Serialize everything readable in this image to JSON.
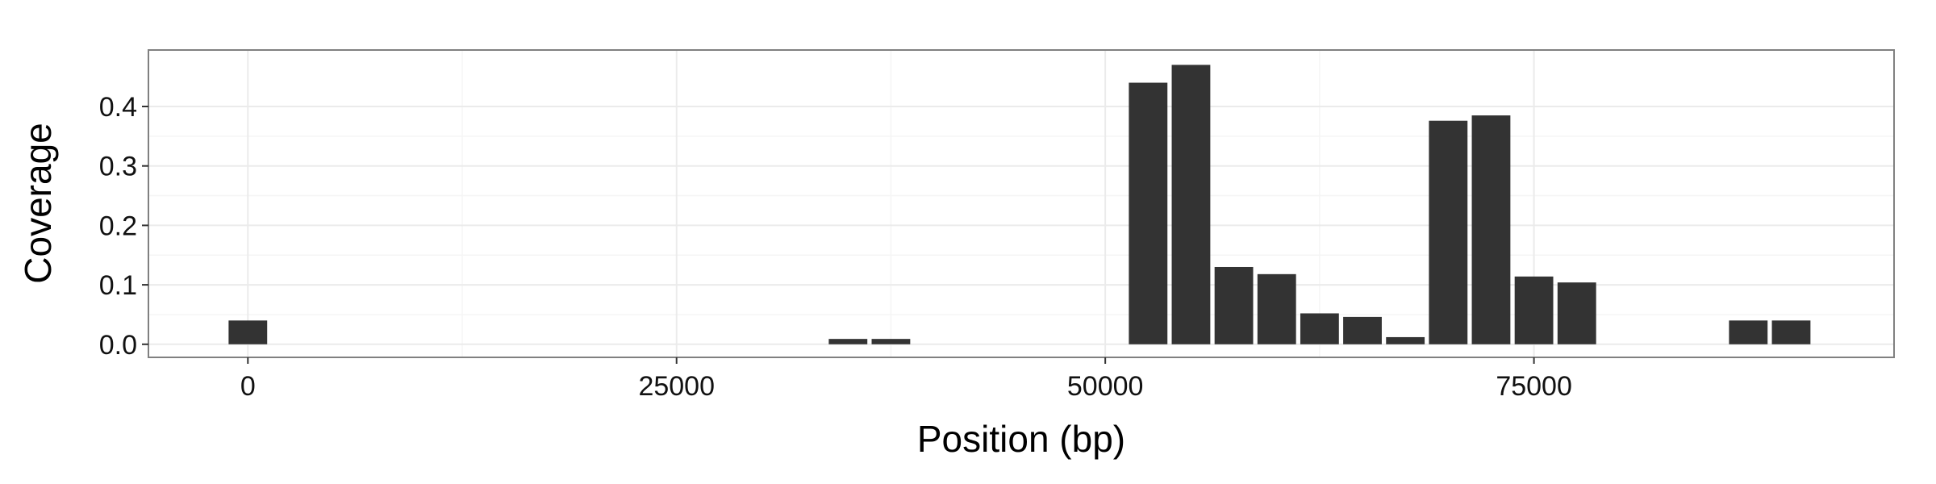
{
  "chart_data": {
    "type": "bar",
    "title": "",
    "xlabel": "Position (bp)",
    "ylabel": "Coverage",
    "xlim": [
      -5800,
      96000
    ],
    "ylim": [
      -0.022,
      0.495
    ],
    "bin_width": 2500,
    "x_ticks": [
      {
        "value": 0,
        "label": "0"
      },
      {
        "value": 25000,
        "label": "25000"
      },
      {
        "value": 50000,
        "label": "50000"
      },
      {
        "value": 75000,
        "label": "75000"
      }
    ],
    "y_ticks": [
      {
        "value": 0.0,
        "label": "0.0"
      },
      {
        "value": 0.1,
        "label": "0.1"
      },
      {
        "value": 0.2,
        "label": "0.2"
      },
      {
        "value": 0.3,
        "label": "0.3"
      },
      {
        "value": 0.4,
        "label": "0.4"
      }
    ],
    "x": [
      0,
      35000,
      37500,
      52500,
      55000,
      57500,
      60000,
      62500,
      65000,
      67500,
      70000,
      72500,
      75000,
      77500,
      87500,
      90000
    ],
    "values": [
      0.04,
      0.009,
      0.009,
      0.44,
      0.47,
      0.13,
      0.118,
      0.052,
      0.046,
      0.012,
      0.376,
      0.385,
      0.114,
      0.104,
      0.04,
      0.04
    ],
    "colors": {
      "bar": "#333333",
      "panel_border": "#808080",
      "grid_major": "#ebebeb",
      "grid_minor": "#f5f5f5"
    }
  }
}
